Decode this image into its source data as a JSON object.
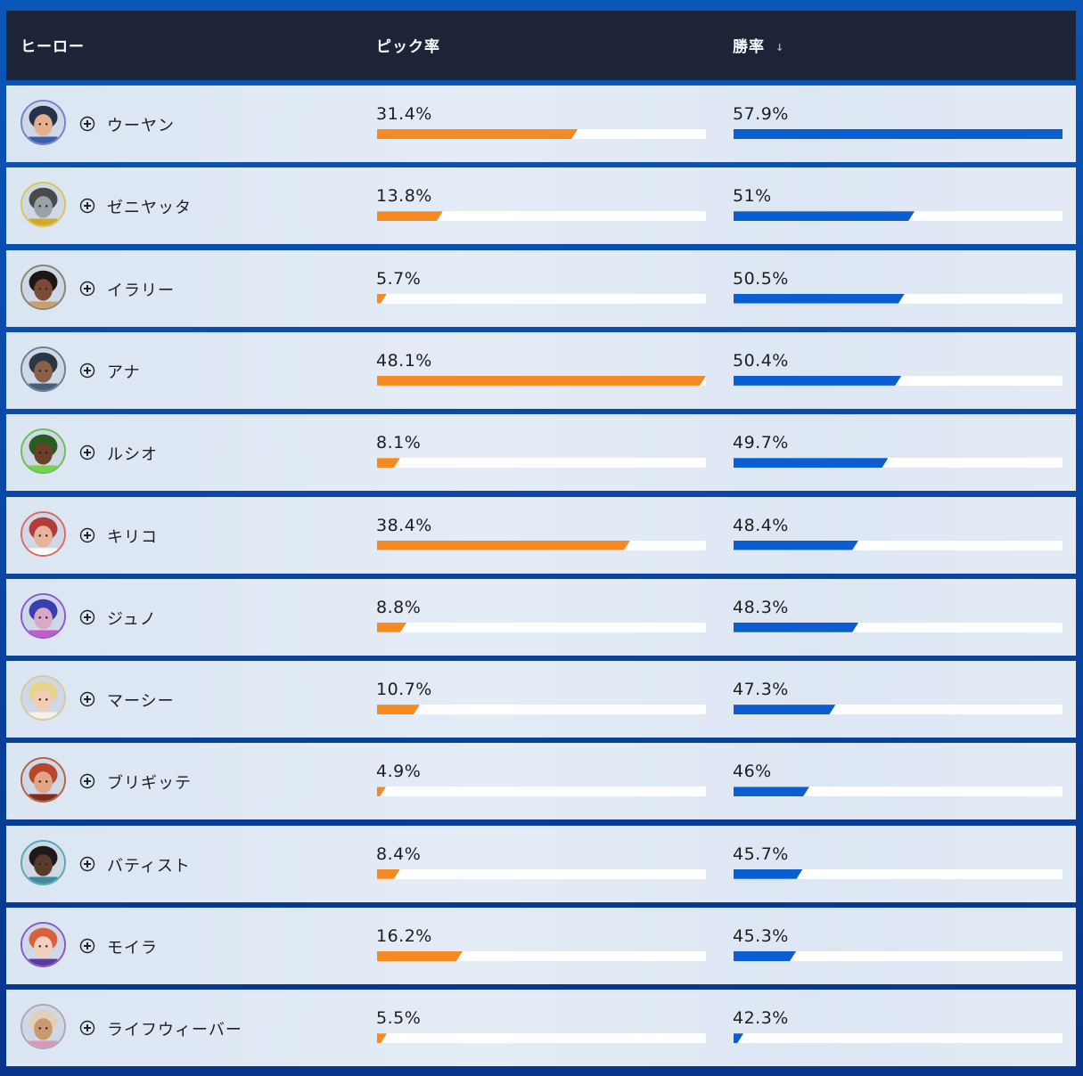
{
  "header": {
    "hero_label": "ヒーロー",
    "pick_label": "ピック率",
    "win_label": "勝率",
    "sort_icon": "↓"
  },
  "colors": {
    "pick_bar": "#f58a22",
    "win_bar": "#0a5ed2",
    "header_bg": "#1d2438",
    "page_bg": "#0a4aa8"
  },
  "rows": [
    {
      "name": "ウーヤン",
      "pick": "31.4%",
      "win": "57.9%",
      "pick_fill": 0.61,
      "win_fill": 1.0,
      "ring": "#6f86c9",
      "skin": "#e2b08e",
      "hair": "#26314a",
      "acc": "#3a5fa8"
    },
    {
      "name": "ゼニヤッタ",
      "pick": "13.8%",
      "win": "51%",
      "pick_fill": 0.2,
      "win_fill": 0.55,
      "ring": "#d8c45a",
      "skin": "#9aa2a8",
      "hair": "#4a4a4a",
      "acc": "#d4a72c"
    },
    {
      "name": "イラリー",
      "pick": "5.7%",
      "win": "50.5%",
      "pick_fill": 0.03,
      "win_fill": 0.52,
      "ring": "#8a8470",
      "skin": "#7a4a32",
      "hair": "#1e1612",
      "acc": "#c9a06a"
    },
    {
      "name": "アナ",
      "pick": "48.1%",
      "win": "50.4%",
      "pick_fill": 1.0,
      "win_fill": 0.51,
      "ring": "#6a7f9e",
      "skin": "#8a6048",
      "hair": "#2c3542",
      "acc": "#4b5e78"
    },
    {
      "name": "ルシオ",
      "pick": "8.1%",
      "win": "49.7%",
      "pick_fill": 0.07,
      "win_fill": 0.47,
      "ring": "#6bbf55",
      "skin": "#6a4028",
      "hair": "#2a5b22",
      "acc": "#74d34a"
    },
    {
      "name": "キリコ",
      "pick": "38.4%",
      "win": "48.4%",
      "pick_fill": 0.77,
      "win_fill": 0.38,
      "ring": "#d86a6a",
      "skin": "#e6b49a",
      "hair": "#b63a3a",
      "acc": "#ffffff"
    },
    {
      "name": "ジュノ",
      "pick": "8.8%",
      "win": "48.3%",
      "pick_fill": 0.09,
      "win_fill": 0.38,
      "ring": "#8a5bd0",
      "skin": "#d9a8c4",
      "hair": "#3a3fb0",
      "acc": "#c35cc8"
    },
    {
      "name": "マーシー",
      "pick": "10.7%",
      "win": "47.3%",
      "pick_fill": 0.13,
      "win_fill": 0.31,
      "ring": "#d7c8a0",
      "skin": "#f0cdb4",
      "hair": "#e8d38a",
      "acc": "#f5f1e6"
    },
    {
      "name": "ブリギッテ",
      "pick": "4.9%",
      "win": "46%",
      "pick_fill": 0.02,
      "win_fill": 0.23,
      "ring": "#b76245",
      "skin": "#e0a587",
      "hair": "#b8462a",
      "acc": "#7d2d1e"
    },
    {
      "name": "バティスト",
      "pick": "8.4%",
      "win": "45.7%",
      "pick_fill": 0.07,
      "win_fill": 0.21,
      "ring": "#5aa8b6",
      "skin": "#5a3a28",
      "hair": "#1d1a18",
      "acc": "#3c8a9c"
    },
    {
      "name": "モイラ",
      "pick": "16.2%",
      "win": "45.3%",
      "pick_fill": 0.26,
      "win_fill": 0.19,
      "ring": "#8a5ac4",
      "skin": "#f2d0c0",
      "hair": "#d8603a",
      "acc": "#5a3a9a"
    },
    {
      "name": "ライフウィーバー",
      "pick": "5.5%",
      "win": "42.3%",
      "pick_fill": 0.03,
      "win_fill": 0.03,
      "ring": "#b0a6b6",
      "skin": "#c9986c",
      "hair": "#e2d0ba",
      "acc": "#d79ab6"
    }
  ]
}
